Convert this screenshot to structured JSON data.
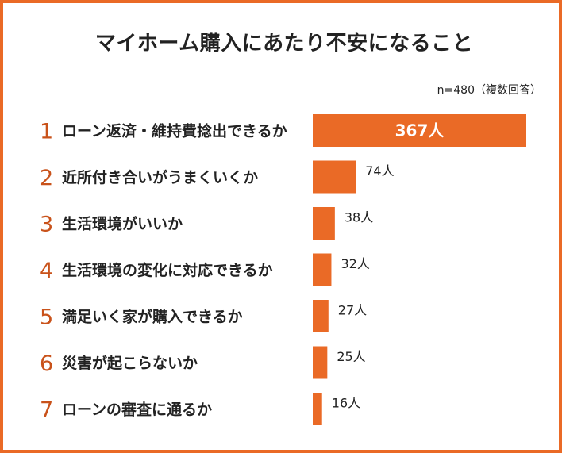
{
  "chart_data": {
    "type": "bar",
    "orientation": "horizontal",
    "title": "マイホーム購入にあたり不安になること",
    "note": "n=480（複数回答）",
    "bar_color": "#ea6a26",
    "rank_color": "#c9521a",
    "ranks": [
      "1",
      "2",
      "3",
      "4",
      "5",
      "6",
      "7"
    ],
    "categories": [
      "ローン返済・維持費捻出できるか",
      "近所付き合いがうまくいくか",
      "生活環境がいいか",
      "生活環境の変化に対応できるか",
      "満足いく家が購入できるか",
      "災害が起こらないか",
      "ローンの審査に通るか"
    ],
    "values": [
      367,
      74,
      38,
      32,
      27,
      25,
      16
    ],
    "value_labels": [
      "367人",
      "74人",
      "38人",
      "32人",
      "27人",
      "25人",
      "16人"
    ],
    "xlim": [
      0,
      367
    ]
  }
}
